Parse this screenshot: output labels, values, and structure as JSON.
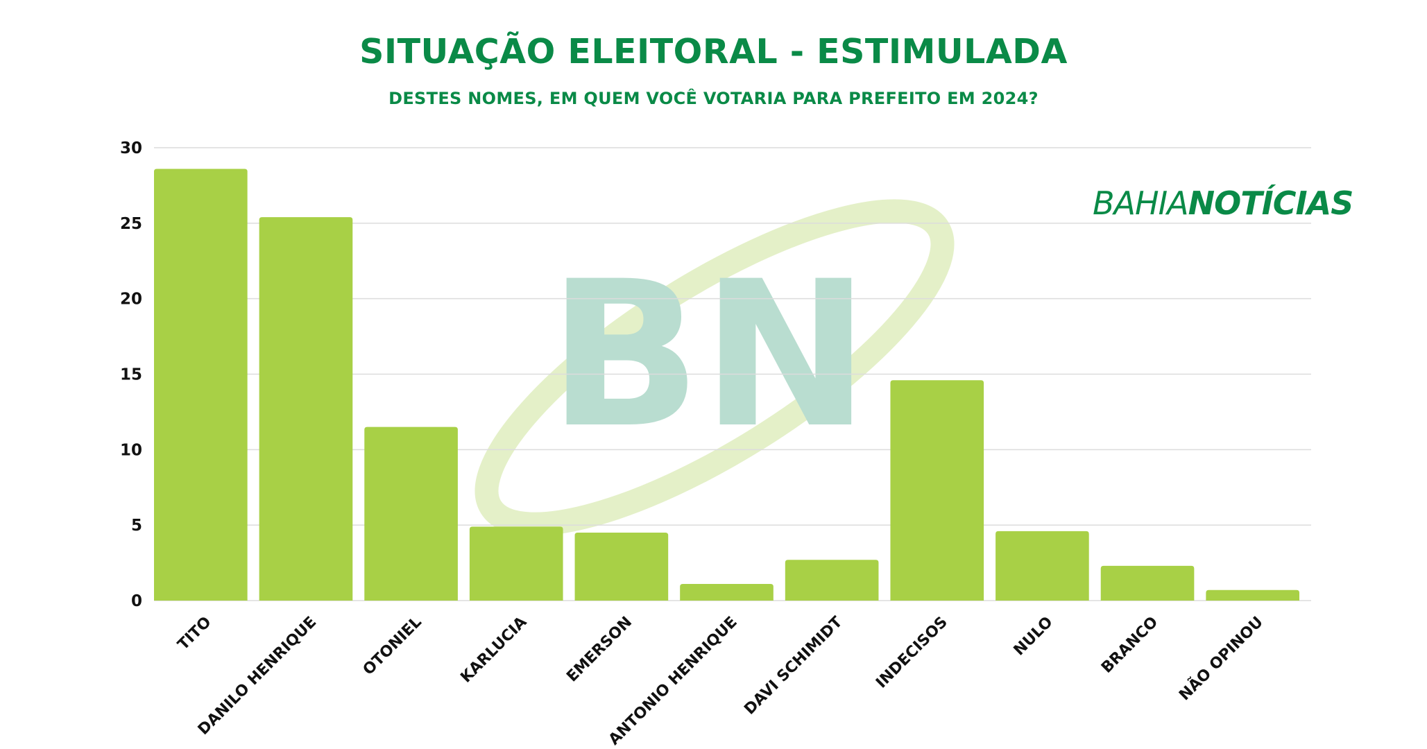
{
  "chart_data": {
    "type": "bar",
    "title": "SITUAÇÃO ELEITORAL - ESTIMULADA",
    "subtitle": "DESTES NOMES, EM QUEM VOCÊ VOTARIA PARA PREFEITO EM 2024?",
    "categories": [
      "TITO",
      "DANILO HENRIQUE",
      "OTONIEL",
      "KARLUCIA",
      "EMERSON",
      "ANTONIO HENRIQUE",
      "DAVI SCHIMIDT",
      "INDECISOS",
      "NULO",
      "BRANCO",
      "NÃO OPINOU"
    ],
    "values": [
      28.6,
      25.4,
      11.5,
      4.9,
      4.5,
      1.1,
      2.7,
      14.6,
      4.6,
      2.3,
      0.7
    ],
    "ylim": [
      0,
      30
    ],
    "yticks": [
      0,
      5,
      10,
      15,
      20,
      25,
      30
    ],
    "xlabel": "",
    "ylabel": "",
    "grid": true,
    "bar_color": "#a8d046",
    "title_color": "#0a8a47"
  },
  "brand": {
    "part1": "BAHIA",
    "part2": "NOTÍCIAS",
    "watermark": "BN"
  }
}
